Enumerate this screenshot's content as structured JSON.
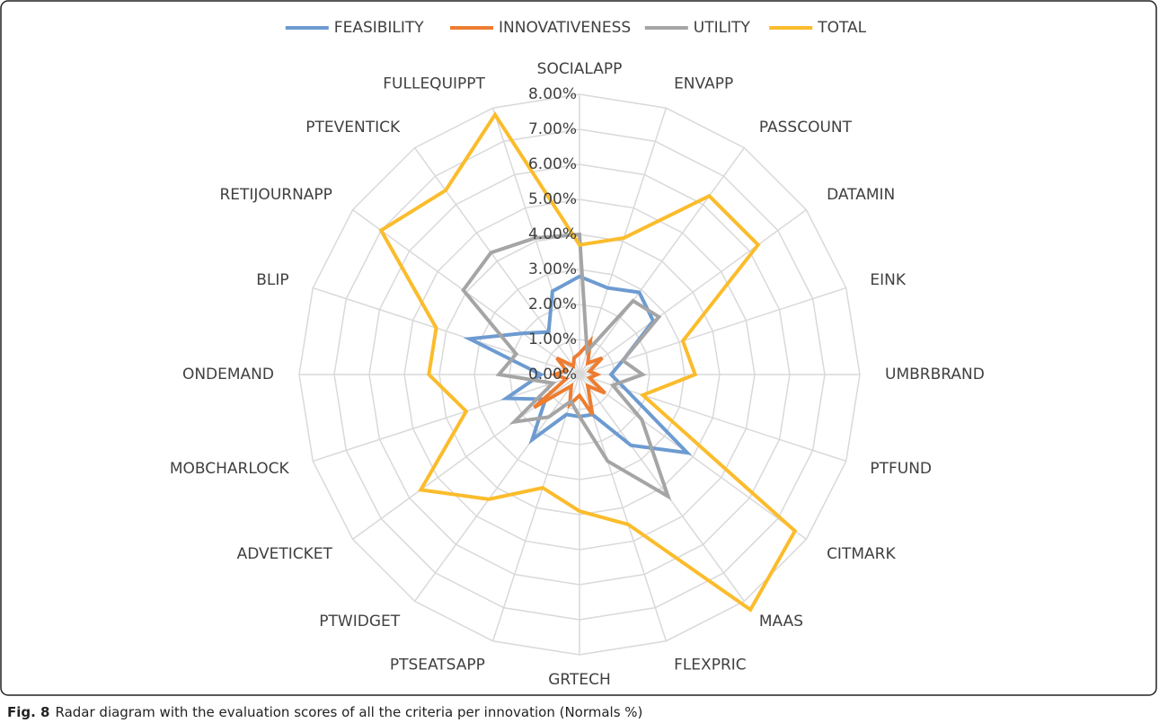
{
  "chart_data": {
    "type": "radar",
    "caption_label": "Fig. 8",
    "caption": "Radar diagram with the evaluation scores of all the criteria per innovation (Normals %)",
    "categories": [
      "SOCIALAPP",
      "ENVAPP",
      "PASSCOUNT",
      "DATAMIN",
      "EINK",
      "UMBRBRAND",
      "PTFUND",
      "CITMARK",
      "MAAS",
      "FLEXPRIC",
      "GRTECH",
      "PTSEATSAPP",
      "PTWIDGET",
      "ADVETICKET",
      "MOBCHARLOCK",
      "ONDEMAND",
      "BLIP",
      "RETIJOURNAPP",
      "PTEVENTICK",
      "FULLEQUIPPT"
    ],
    "series": [
      {
        "name": "FEASIBILITY",
        "color": "#6d9bd1",
        "values": [
          2.8,
          2.6,
          2.9,
          2.6,
          1.3,
          0.9,
          1.4,
          3.8,
          2.5,
          1.2,
          1.2,
          1.2,
          2.3,
          1.2,
          2.2,
          1.1,
          3.3,
          2.0,
          1.5,
          2.5
        ]
      },
      {
        "name": "INNOVATIVENESS",
        "color": "#ed7d31",
        "values": [
          0.6,
          1.0,
          0.4,
          0.8,
          0.3,
          0.5,
          0.3,
          0.9,
          0.4,
          1.2,
          0.6,
          0.9,
          0.4,
          1.6,
          0.4,
          0.7,
          0.4,
          0.8,
          0.3,
          0.5
        ]
      },
      {
        "name": "UTILITY",
        "color": "#a5a5a5",
        "values": [
          4.0,
          0.7,
          2.6,
          2.8,
          1.3,
          1.8,
          1.0,
          2.2,
          4.3,
          2.6,
          1.2,
          0.8,
          1.5,
          2.3,
          0.8,
          2.3,
          1.9,
          4.1,
          4.3,
          4.1
        ]
      },
      {
        "name": "TOTAL",
        "color": "#fbbc2c",
        "values": [
          3.7,
          4.1,
          6.3,
          6.3,
          3.1,
          3.3,
          1.9,
          7.6,
          8.3,
          4.5,
          3.9,
          3.4,
          4.4,
          5.6,
          3.4,
          4.3,
          4.3,
          7.0,
          6.5,
          7.8
        ]
      }
    ],
    "ylim": [
      0,
      8
    ],
    "yticks": [
      {
        "value": 0,
        "label": "0.00%"
      },
      {
        "value": 1,
        "label": "1.00%"
      },
      {
        "value": 2,
        "label": "2.00%"
      },
      {
        "value": 3,
        "label": "3.00%"
      },
      {
        "value": 4,
        "label": "4.00%"
      },
      {
        "value": 5,
        "label": "5.00%"
      },
      {
        "value": 6,
        "label": "6.00%"
      },
      {
        "value": 7,
        "label": "7.00%"
      },
      {
        "value": 8,
        "label": "8.00%"
      }
    ],
    "grid": true,
    "legend": "top"
  }
}
